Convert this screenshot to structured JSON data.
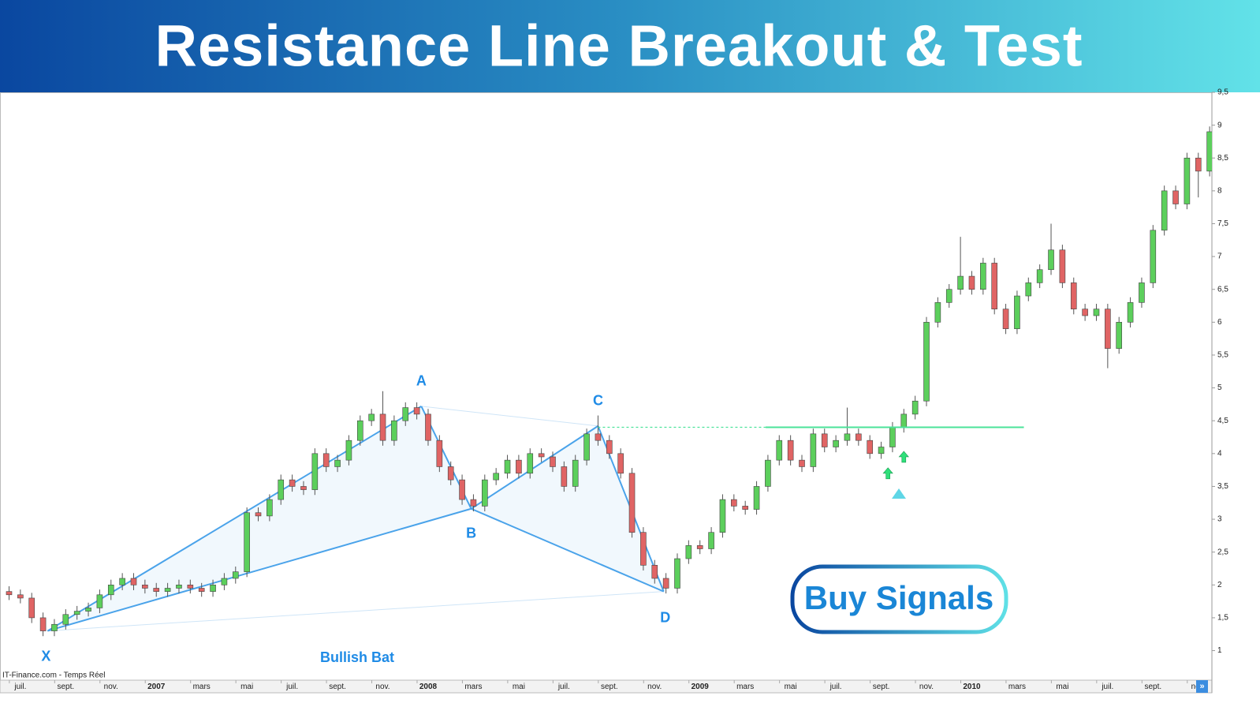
{
  "chart_data": {
    "type": "candlestick",
    "title": "Resistance Line Breakout & Test",
    "source": "IT-Finance.com - Temps Réel",
    "up_color": "#5ccf5c",
    "down_color": "#e06464",
    "xlim": [
      -0.9,
      52.6
    ],
    "ylim": [
      0.55,
      9.5
    ],
    "xticks": [
      {
        "value": 0,
        "label": "juil."
      },
      {
        "value": 2,
        "label": "sept."
      },
      {
        "value": 4,
        "label": "nov."
      },
      {
        "value": 6,
        "label": "2007"
      },
      {
        "value": 8,
        "label": "mars"
      },
      {
        "value": 10,
        "label": "mai"
      },
      {
        "value": 12,
        "label": "juil."
      },
      {
        "value": 14,
        "label": "sept."
      },
      {
        "value": 16,
        "label": "nov."
      },
      {
        "value": 18,
        "label": "2008"
      },
      {
        "value": 20,
        "label": "mars"
      },
      {
        "value": 22,
        "label": "mai"
      },
      {
        "value": 24,
        "label": "juil."
      },
      {
        "value": 26,
        "label": "sept."
      },
      {
        "value": 28,
        "label": "nov."
      },
      {
        "value": 30,
        "label": "2009"
      },
      {
        "value": 32,
        "label": "mars"
      },
      {
        "value": 34,
        "label": "mai"
      },
      {
        "value": 36,
        "label": "juil."
      },
      {
        "value": 38,
        "label": "sept."
      },
      {
        "value": 40,
        "label": "nov."
      },
      {
        "value": 42,
        "label": "2010"
      },
      {
        "value": 44,
        "label": "mars"
      },
      {
        "value": 46,
        "label": "mai"
      },
      {
        "value": 48,
        "label": "juil."
      },
      {
        "value": 50,
        "label": "sept."
      },
      {
        "value": 52,
        "label": "nov."
      }
    ],
    "yticks": [
      1,
      {
        "value": 1.5,
        "label": "1,5"
      },
      2,
      {
        "value": 2.5,
        "label": "2,5"
      },
      3,
      {
        "value": 3.5,
        "label": "3,5"
      },
      4,
      {
        "value": 4.5,
        "label": "4,5"
      },
      5,
      {
        "value": 5.5,
        "label": "5,5"
      },
      6,
      {
        "value": 6.5,
        "label": "6,5"
      },
      7,
      {
        "value": 7.5,
        "label": "7,5"
      },
      8,
      {
        "value": 8.5,
        "label": "8,5"
      },
      9,
      {
        "value": 9.5,
        "label": "9,5"
      }
    ],
    "x": [
      -0.5,
      0,
      0.5,
      1,
      1.5,
      2,
      2.5,
      3,
      3.5,
      4,
      4.5,
      5,
      5.5,
      6,
      6.5,
      7,
      7.5,
      8,
      8.5,
      9,
      9.5,
      10,
      10.5,
      11,
      11.5,
      12,
      12.5,
      13,
      13.5,
      14,
      14.5,
      15,
      15.5,
      16,
      16.5,
      17,
      17.5,
      18,
      18.5,
      19,
      19.5,
      20,
      20.5,
      21,
      21.5,
      22,
      22.5,
      23,
      23.5,
      24,
      24.5,
      25,
      25.5,
      26,
      26.5,
      27,
      27.5,
      28,
      28.5,
      29,
      29.5,
      30,
      30.5,
      31,
      31.5,
      32,
      32.5,
      33,
      33.5,
      34,
      34.5,
      35,
      35.5,
      36,
      36.5,
      37,
      37.5,
      38,
      38.5,
      39,
      39.5,
      40,
      40.5,
      41,
      41.5,
      42,
      42.5,
      43,
      43.5,
      44,
      44.5,
      45,
      45.5,
      46,
      46.5,
      47,
      47.5,
      48,
      48.5,
      49,
      49.5,
      50,
      50.5,
      51,
      51.5,
      52,
      52.5
    ],
    "candles": [
      [
        1.9,
        1.98,
        1.77,
        1.85
      ],
      [
        1.85,
        1.93,
        1.72,
        1.8
      ],
      [
        1.8,
        1.88,
        1.42,
        1.5
      ],
      [
        1.5,
        1.58,
        1.22,
        1.3
      ],
      [
        1.3,
        1.48,
        1.22,
        1.4
      ],
      [
        1.4,
        1.63,
        1.32,
        1.55
      ],
      [
        1.55,
        1.68,
        1.47,
        1.6
      ],
      [
        1.6,
        1.73,
        1.52,
        1.65
      ],
      [
        1.65,
        1.93,
        1.57,
        1.85
      ],
      [
        1.85,
        2.08,
        1.77,
        2.0
      ],
      [
        2.0,
        2.18,
        1.92,
        2.1
      ],
      [
        2.1,
        2.18,
        1.92,
        2.0
      ],
      [
        2.0,
        2.08,
        1.87,
        1.95
      ],
      [
        1.95,
        2.03,
        1.82,
        1.9
      ],
      [
        1.9,
        2.03,
        1.82,
        1.95
      ],
      [
        1.95,
        2.08,
        1.87,
        2.0
      ],
      [
        2.0,
        2.08,
        1.87,
        1.95
      ],
      [
        1.95,
        2.03,
        1.82,
        1.9
      ],
      [
        1.9,
        2.08,
        1.82,
        2.0
      ],
      [
        2.0,
        2.18,
        1.92,
        2.1
      ],
      [
        2.1,
        2.28,
        2.02,
        2.2
      ],
      [
        2.2,
        3.18,
        2.12,
        3.1
      ],
      [
        3.1,
        3.18,
        2.97,
        3.05
      ],
      [
        3.05,
        3.38,
        2.97,
        3.3
      ],
      [
        3.3,
        3.68,
        3.22,
        3.6
      ],
      [
        3.6,
        3.68,
        3.42,
        3.5
      ],
      [
        3.5,
        3.58,
        3.37,
        3.45
      ],
      [
        3.45,
        4.08,
        3.37,
        4.0
      ],
      [
        4.0,
        4.08,
        3.72,
        3.8
      ],
      [
        3.8,
        3.98,
        3.72,
        3.9
      ],
      [
        3.9,
        4.28,
        3.82,
        4.2
      ],
      [
        4.2,
        4.58,
        4.12,
        4.5
      ],
      [
        4.5,
        4.68,
        4.42,
        4.6
      ],
      [
        4.6,
        4.95,
        4.12,
        4.2
      ],
      [
        4.2,
        4.58,
        4.12,
        4.5
      ],
      [
        4.5,
        4.78,
        4.42,
        4.7
      ],
      [
        4.7,
        4.78,
        4.52,
        4.6
      ],
      [
        4.6,
        4.68,
        4.12,
        4.2
      ],
      [
        4.2,
        4.28,
        3.72,
        3.8
      ],
      [
        3.8,
        3.88,
        3.52,
        3.6
      ],
      [
        3.6,
        3.68,
        3.22,
        3.3
      ],
      [
        3.3,
        3.38,
        3.12,
        3.2
      ],
      [
        3.2,
        3.68,
        3.12,
        3.6
      ],
      [
        3.6,
        3.78,
        3.52,
        3.7
      ],
      [
        3.7,
        3.98,
        3.62,
        3.9
      ],
      [
        3.9,
        3.98,
        3.62,
        3.7
      ],
      [
        3.7,
        4.08,
        3.62,
        4.0
      ],
      [
        4.0,
        4.08,
        3.87,
        3.95
      ],
      [
        3.95,
        4.03,
        3.72,
        3.8
      ],
      [
        3.8,
        3.88,
        3.42,
        3.5
      ],
      [
        3.5,
        3.98,
        3.42,
        3.9
      ],
      [
        3.9,
        4.38,
        3.82,
        4.3
      ],
      [
        4.3,
        4.58,
        4.12,
        4.2
      ],
      [
        4.2,
        4.28,
        3.92,
        4.0
      ],
      [
        4.0,
        4.08,
        3.62,
        3.7
      ],
      [
        3.7,
        3.78,
        2.72,
        2.8
      ],
      [
        2.8,
        2.88,
        2.22,
        2.3
      ],
      [
        2.3,
        2.38,
        2.02,
        2.1
      ],
      [
        2.1,
        2.18,
        1.87,
        1.95
      ],
      [
        1.95,
        2.48,
        1.87,
        2.4
      ],
      [
        2.4,
        2.68,
        2.32,
        2.6
      ],
      [
        2.6,
        2.68,
        2.47,
        2.55
      ],
      [
        2.55,
        2.88,
        2.47,
        2.8
      ],
      [
        2.8,
        3.38,
        2.72,
        3.3
      ],
      [
        3.3,
        3.38,
        3.12,
        3.2
      ],
      [
        3.2,
        3.28,
        3.07,
        3.15
      ],
      [
        3.15,
        3.58,
        3.07,
        3.5
      ],
      [
        3.5,
        3.98,
        3.42,
        3.9
      ],
      [
        3.9,
        4.28,
        3.82,
        4.2
      ],
      [
        4.2,
        4.28,
        3.82,
        3.9
      ],
      [
        3.9,
        3.98,
        3.72,
        3.8
      ],
      [
        3.8,
        4.38,
        3.72,
        4.3
      ],
      [
        4.3,
        4.38,
        4.02,
        4.1
      ],
      [
        4.1,
        4.28,
        4.02,
        4.2
      ],
      [
        4.2,
        4.7,
        4.12,
        4.3
      ],
      [
        4.3,
        4.38,
        4.12,
        4.2
      ],
      [
        4.2,
        4.28,
        3.92,
        4.0
      ],
      [
        4.0,
        4.18,
        3.92,
        4.1
      ],
      [
        4.1,
        4.48,
        4.02,
        4.4
      ],
      [
        4.4,
        4.68,
        4.32,
        4.6
      ],
      [
        4.6,
        4.88,
        4.52,
        4.8
      ],
      [
        4.8,
        6.08,
        4.72,
        6.0
      ],
      [
        6.0,
        6.38,
        5.92,
        6.3
      ],
      [
        6.3,
        6.58,
        6.22,
        6.5
      ],
      [
        6.5,
        7.3,
        6.42,
        6.7
      ],
      [
        6.7,
        6.78,
        6.42,
        6.5
      ],
      [
        6.5,
        6.98,
        6.42,
        6.9
      ],
      [
        6.9,
        6.98,
        6.12,
        6.2
      ],
      [
        6.2,
        6.28,
        5.82,
        5.9
      ],
      [
        5.9,
        6.48,
        5.82,
        6.4
      ],
      [
        6.4,
        6.68,
        6.32,
        6.6
      ],
      [
        6.6,
        6.88,
        6.52,
        6.8
      ],
      [
        6.8,
        7.5,
        6.72,
        7.1
      ],
      [
        7.1,
        7.18,
        6.52,
        6.6
      ],
      [
        6.6,
        6.68,
        6.12,
        6.2
      ],
      [
        6.2,
        6.28,
        6.02,
        6.1
      ],
      [
        6.1,
        6.28,
        6.02,
        6.2
      ],
      [
        6.2,
        6.28,
        5.3,
        5.6
      ],
      [
        5.6,
        6.08,
        5.52,
        6.0
      ],
      [
        6.0,
        6.38,
        5.92,
        6.3
      ],
      [
        6.3,
        6.68,
        6.22,
        6.6
      ],
      [
        6.6,
        7.48,
        6.52,
        7.4
      ],
      [
        7.4,
        8.08,
        7.32,
        8.0
      ],
      [
        8.0,
        8.08,
        7.72,
        7.8
      ],
      [
        7.8,
        8.58,
        7.72,
        8.5
      ],
      [
        8.5,
        8.58,
        7.9,
        8.3
      ],
      [
        8.3,
        8.98,
        8.22,
        8.9
      ]
    ],
    "pattern": {
      "name": "Bullish Bat",
      "color": "#4aa3ea",
      "points": [
        {
          "label": "X",
          "x": 1.2,
          "y": 1.3
        },
        {
          "label": "A",
          "x": 17.7,
          "y": 4.72
        },
        {
          "label": "B",
          "x": 19.9,
          "y": 3.16
        },
        {
          "label": "C",
          "x": 25.5,
          "y": 4.42
        },
        {
          "label": "D",
          "x": 28.4,
          "y": 1.9
        }
      ]
    },
    "resistance": {
      "value": 4.4,
      "from": 25.5,
      "solid_from": 32.9,
      "to": 44.3,
      "color": "#4be39a"
    },
    "buy_signals": {
      "label": "Buy Signals",
      "color": "#2fe07a",
      "points": [
        {
          "x": 38.3,
          "y": 3.7
        },
        {
          "x": 39.0,
          "y": 3.95
        }
      ]
    }
  }
}
